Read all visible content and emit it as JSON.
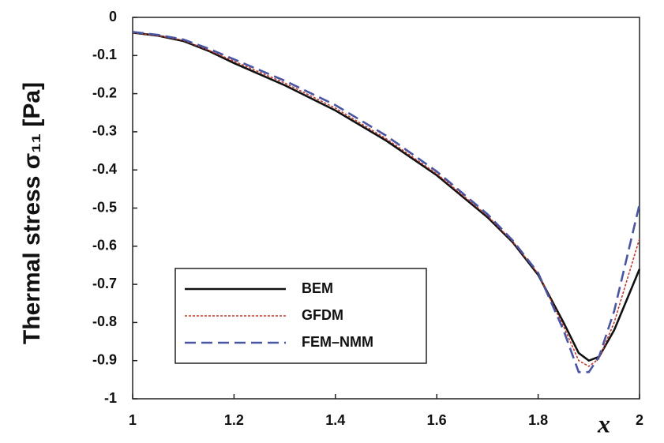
{
  "chart_data": {
    "type": "line",
    "xlabel": "x",
    "ylabel": "Thermal stress σ₁₁ [Pa]",
    "x": [
      1,
      1.05,
      1.1,
      1.15,
      1.2,
      1.3,
      1.4,
      1.5,
      1.6,
      1.7,
      1.75,
      1.8,
      1.85,
      1.88,
      1.9,
      1.92,
      1.95,
      2
    ],
    "series": [
      {
        "name": "BEM",
        "color": "#111111",
        "dash": "solid",
        "values": [
          -0.04,
          -0.048,
          -0.062,
          -0.088,
          -0.12,
          -0.178,
          -0.244,
          -0.323,
          -0.414,
          -0.524,
          -0.59,
          -0.675,
          -0.8,
          -0.88,
          -0.9,
          -0.89,
          -0.82,
          -0.66
        ]
      },
      {
        "name": "GFDM",
        "color": "#c0392b",
        "dash": "dotted",
        "values": [
          -0.04,
          -0.048,
          -0.06,
          -0.086,
          -0.115,
          -0.172,
          -0.238,
          -0.318,
          -0.41,
          -0.52,
          -0.588,
          -0.672,
          -0.81,
          -0.9,
          -0.915,
          -0.895,
          -0.8,
          -0.58
        ]
      },
      {
        "name": "FEM–NMM",
        "color": "#4a55a2",
        "dash": "dashed",
        "values": [
          -0.038,
          -0.046,
          -0.058,
          -0.082,
          -0.11,
          -0.166,
          -0.23,
          -0.31,
          -0.404,
          -0.516,
          -0.585,
          -0.67,
          -0.82,
          -0.93,
          -0.93,
          -0.89,
          -0.77,
          -0.49
        ]
      }
    ],
    "xlim": [
      1,
      2
    ],
    "xticks": [
      1,
      1.2,
      1.4,
      1.6,
      1.8,
      2
    ],
    "ylim": [
      -1,
      0
    ],
    "yticks": [
      0,
      -0.1,
      -0.2,
      -0.3,
      -0.4,
      -0.5,
      -0.6,
      -0.7,
      -0.8,
      -0.9,
      -1
    ],
    "grid": false,
    "legend": "lower left"
  }
}
